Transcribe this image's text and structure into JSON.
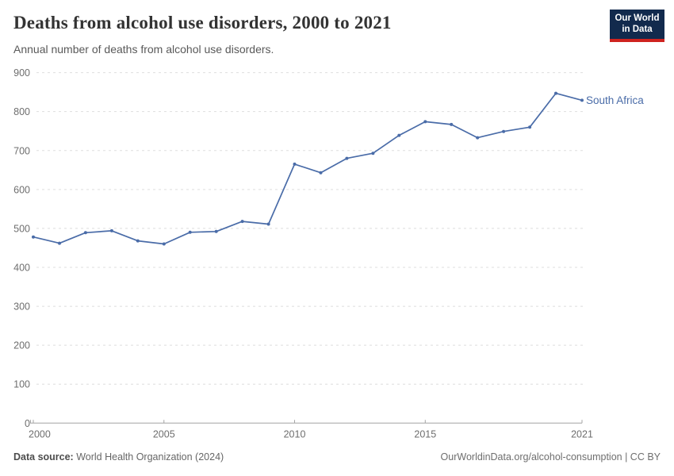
{
  "header": {
    "logo": {
      "line1": "Our World",
      "line2": "in Data",
      "bg_color": "#122a4d",
      "accent_color": "#cf231f"
    }
  },
  "chart_data": {
    "type": "line",
    "title": "Deaths from alcohol use disorders, 2000 to 2021",
    "subtitle": "Annual number of deaths from alcohol use disorders.",
    "xlim": [
      2000,
      2021
    ],
    "ylim": [
      0,
      900
    ],
    "x_ticks": [
      2000,
      2005,
      2010,
      2015,
      2021
    ],
    "y_ticks": [
      0,
      100,
      200,
      300,
      400,
      500,
      600,
      700,
      800,
      900
    ],
    "grid": "horizontal-dashed",
    "legend_position": "end-of-line-label",
    "axis_color": "#a3a3a3",
    "gridline_color": "#dedede",
    "series": [
      {
        "name": "South Africa",
        "color": "#4a6ca8",
        "x": [
          2000,
          2001,
          2002,
          2003,
          2004,
          2005,
          2006,
          2007,
          2008,
          2009,
          2010,
          2011,
          2012,
          2013,
          2014,
          2015,
          2016,
          2017,
          2018,
          2019,
          2020,
          2021
        ],
        "values": [
          478,
          462,
          489,
          494,
          468,
          460,
          490,
          492,
          518,
          511,
          665,
          643,
          680,
          693,
          739,
          774,
          767,
          733,
          749,
          760,
          847,
          829
        ]
      }
    ]
  },
  "footer": {
    "source_label": "Data source:",
    "source_value": " World Health Organization (2024)",
    "attribution": "OurWorldinData.org/alcohol-consumption | CC BY"
  }
}
